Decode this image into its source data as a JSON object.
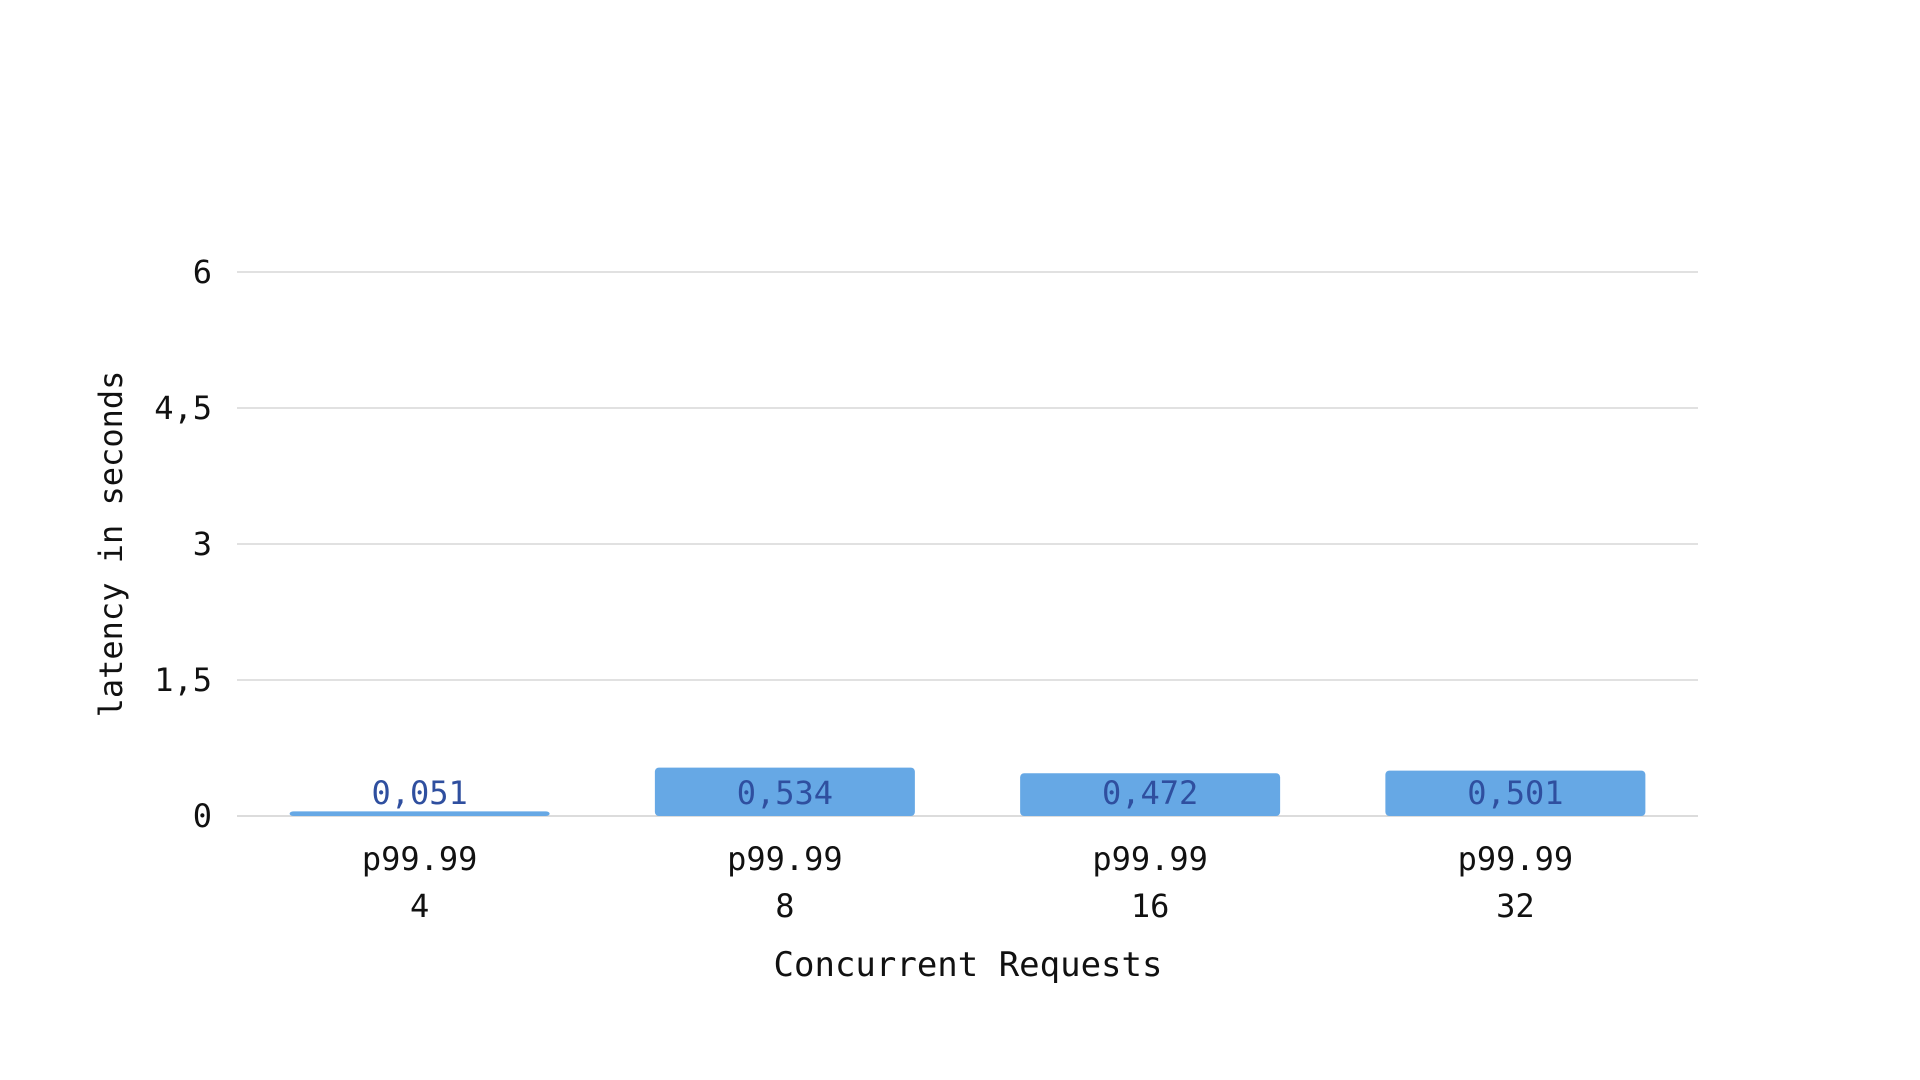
{
  "chart_data": {
    "type": "bar",
    "categories": [
      [
        "p99.99",
        "4"
      ],
      [
        "p99.99",
        "8"
      ],
      [
        "p99.99",
        "16"
      ],
      [
        "p99.99",
        "32"
      ]
    ],
    "values": [
      0.051,
      0.534,
      0.472,
      0.501
    ],
    "value_labels": [
      "0,051",
      "0,534",
      "0,472",
      "0,501"
    ],
    "title": "",
    "xlabel": "Concurrent Requests",
    "ylabel": "latency in seconds",
    "ylim": [
      0,
      6
    ],
    "y_ticks": [
      0,
      1.5,
      3,
      4.5,
      6
    ],
    "y_tick_labels": [
      "0",
      "1,5",
      "3",
      "4,5",
      "6"
    ],
    "grid": true,
    "colors": {
      "bar": "#66a8e5",
      "value_label": "#2f4f9f",
      "grid": "#d7d7d7",
      "text": "#111111"
    }
  }
}
